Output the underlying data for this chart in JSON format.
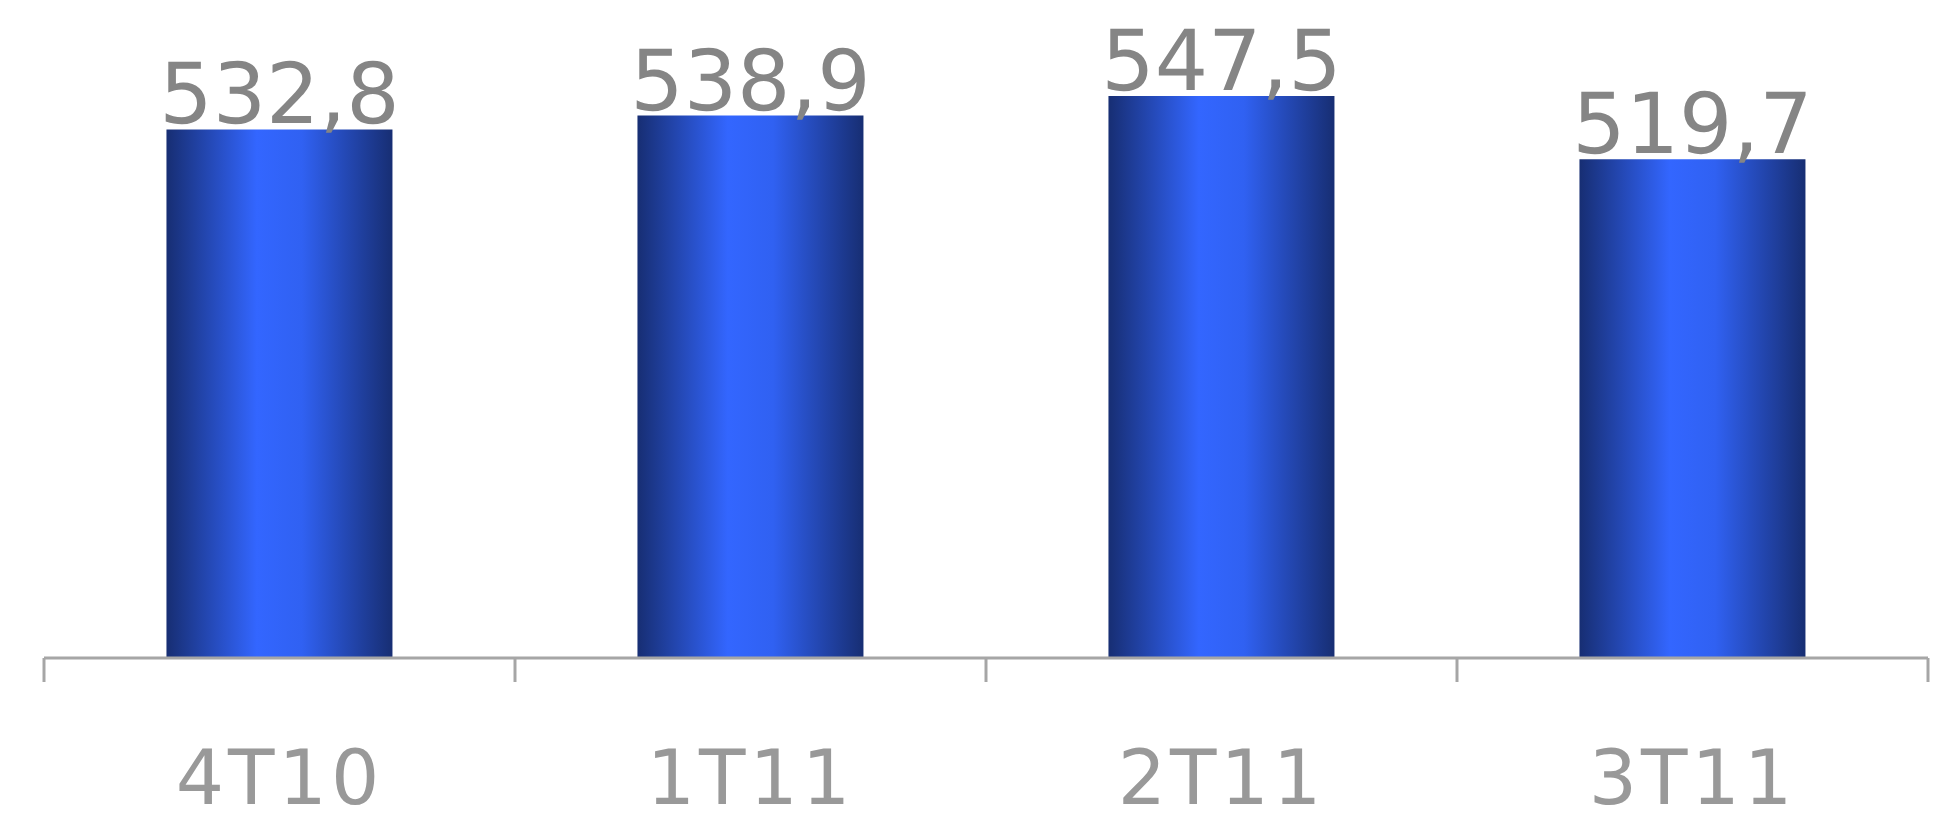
{
  "chart_data": {
    "type": "bar",
    "categories": [
      "4T10",
      "1T11",
      "2T11",
      "3T11"
    ],
    "values": [
      532.8,
      538.9,
      547.5,
      519.7
    ],
    "value_labels": [
      "532,8",
      "538,9",
      "547,5",
      "519,7"
    ],
    "color": "#3366ff",
    "ylim": [
      300,
      547.5
    ],
    "tick_labels": "x"
  }
}
